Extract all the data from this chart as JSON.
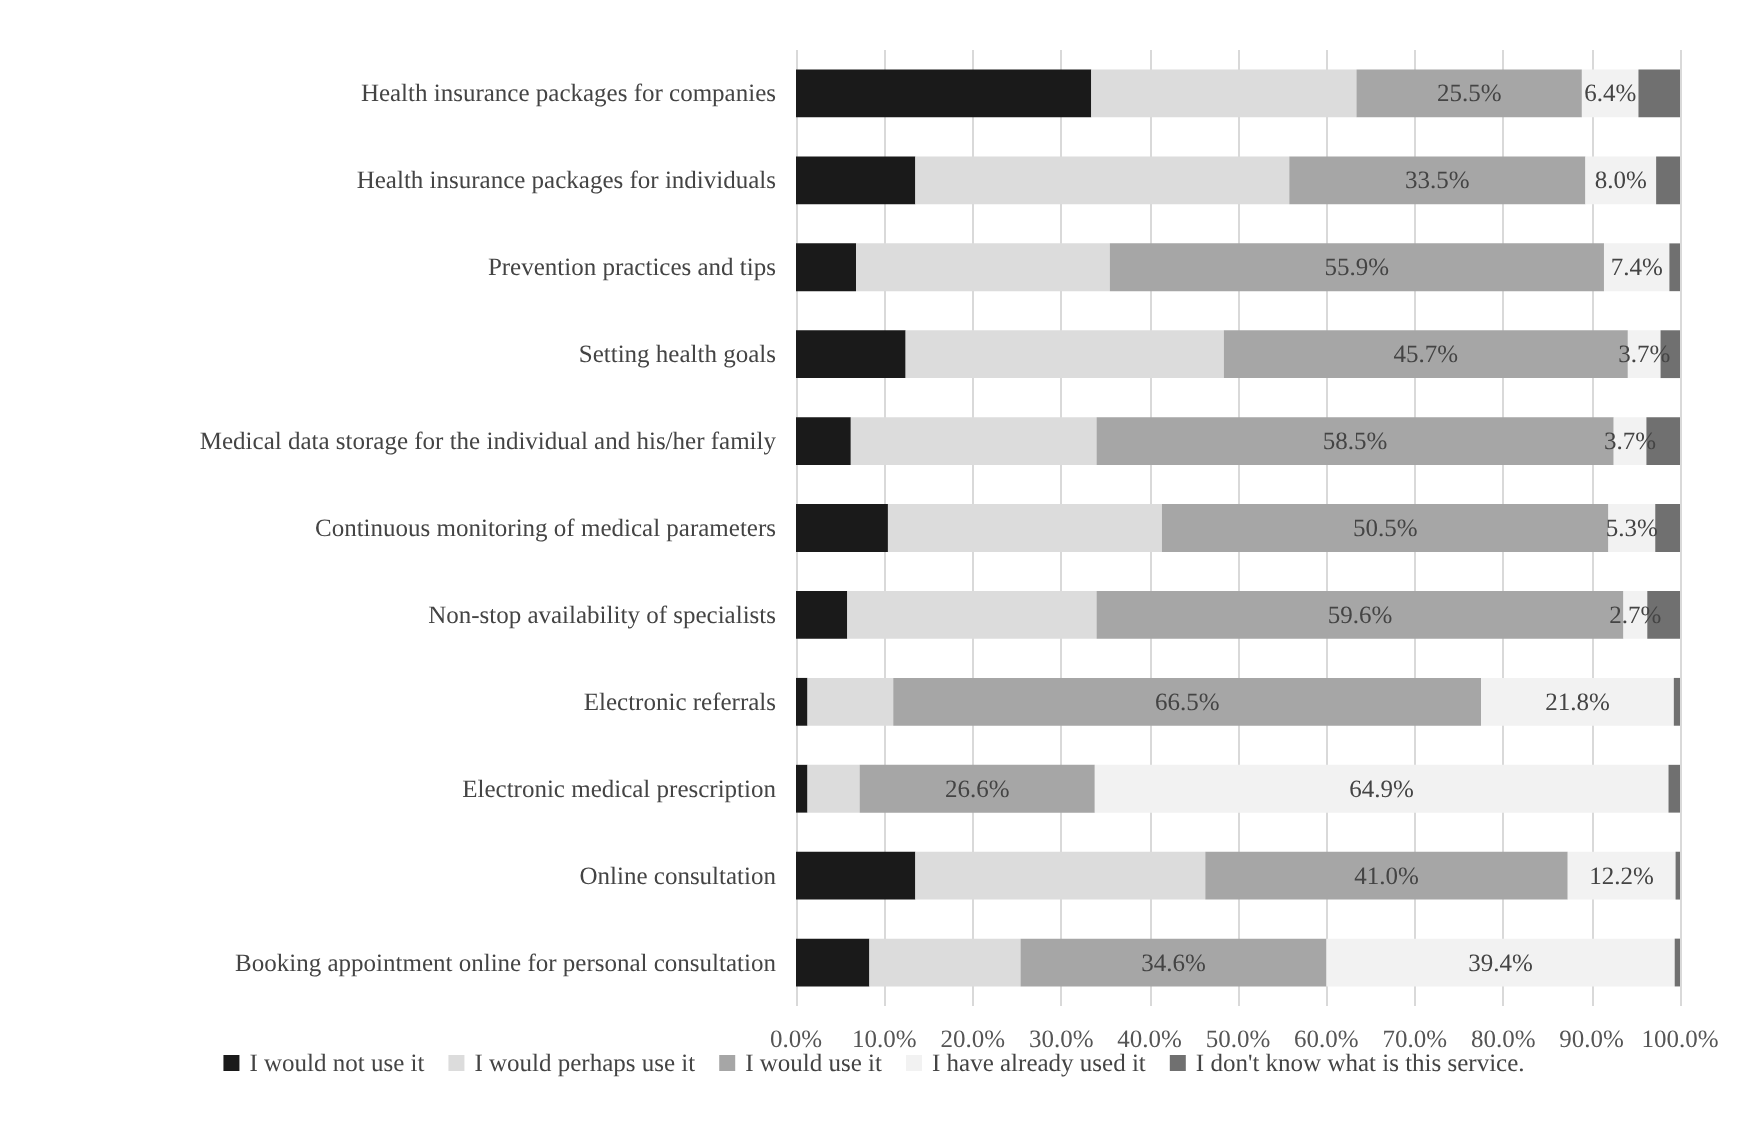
{
  "chart_data": {
    "type": "bar",
    "orientation": "horizontal",
    "stacked": true,
    "categories": [
      "Health insurance packages for companies",
      "Health insurance packages for individuals",
      "Prevention practices and tips",
      "Setting health goals",
      "Medical data storage for the individual and his/her family",
      "Continuous monitoring of medical parameters",
      "Non-stop availability of specialists",
      "Electronic referrals",
      "Electronic medical prescription",
      "Online consultation",
      "Booking appointment online for personal consultation"
    ],
    "series": [
      {
        "name": "I would not use it",
        "color": "#1a1a1a",
        "values": [
          33.4,
          13.5,
          6.8,
          12.4,
          6.2,
          10.4,
          5.8,
          1.3,
          1.3,
          13.5,
          8.3
        ]
      },
      {
        "name": "I would perhaps use it",
        "color": "#dcdcdc",
        "values": [
          30.0,
          42.3,
          28.7,
          36.0,
          27.8,
          31.0,
          28.2,
          9.7,
          5.9,
          32.8,
          17.1
        ]
      },
      {
        "name": "I would use it",
        "color": "#a6a6a6",
        "values": [
          25.5,
          33.5,
          55.9,
          45.7,
          58.5,
          50.5,
          59.6,
          66.5,
          26.6,
          41.0,
          34.6
        ],
        "value_labels": [
          "25.5%",
          "33.5%",
          "55.9%",
          "45.7%",
          "58.5%",
          "50.5%",
          "59.6%",
          "66.5%",
          "26.6%",
          "41.0%",
          "34.6%"
        ]
      },
      {
        "name": "I have already used it",
        "color": "#f2f2f2",
        "values": [
          6.4,
          8.0,
          7.4,
          3.7,
          3.7,
          5.3,
          2.7,
          21.8,
          64.9,
          12.2,
          39.4
        ],
        "value_labels": [
          "6.4%",
          "8.0%",
          "7.4%",
          "3.7%",
          "3.7%",
          "5.3%",
          "2.7%",
          "21.8%",
          "64.9%",
          "12.2%",
          "39.4%"
        ]
      },
      {
        "name": "I don't know what is this service.",
        "color": "#707070",
        "values": [
          4.7,
          2.7,
          1.2,
          2.2,
          3.8,
          2.8,
          3.7,
          0.7,
          1.3,
          0.5,
          0.6
        ]
      }
    ],
    "xlim": [
      0,
      100
    ],
    "xticks": [
      {
        "value": 0,
        "label": "0.0%"
      },
      {
        "value": 10,
        "label": "10.0%"
      },
      {
        "value": 20,
        "label": "20.0%"
      },
      {
        "value": 30,
        "label": "30.0%"
      },
      {
        "value": 40,
        "label": "40.0%"
      },
      {
        "value": 50,
        "label": "50.0%"
      },
      {
        "value": 60,
        "label": "60.0%"
      },
      {
        "value": 70,
        "label": "70.0%"
      },
      {
        "value": 80,
        "label": "80.0%"
      },
      {
        "value": 90,
        "label": "90.0%"
      },
      {
        "value": 100,
        "label": "100.0%"
      }
    ],
    "grid": "x",
    "legend": "bottom"
  }
}
